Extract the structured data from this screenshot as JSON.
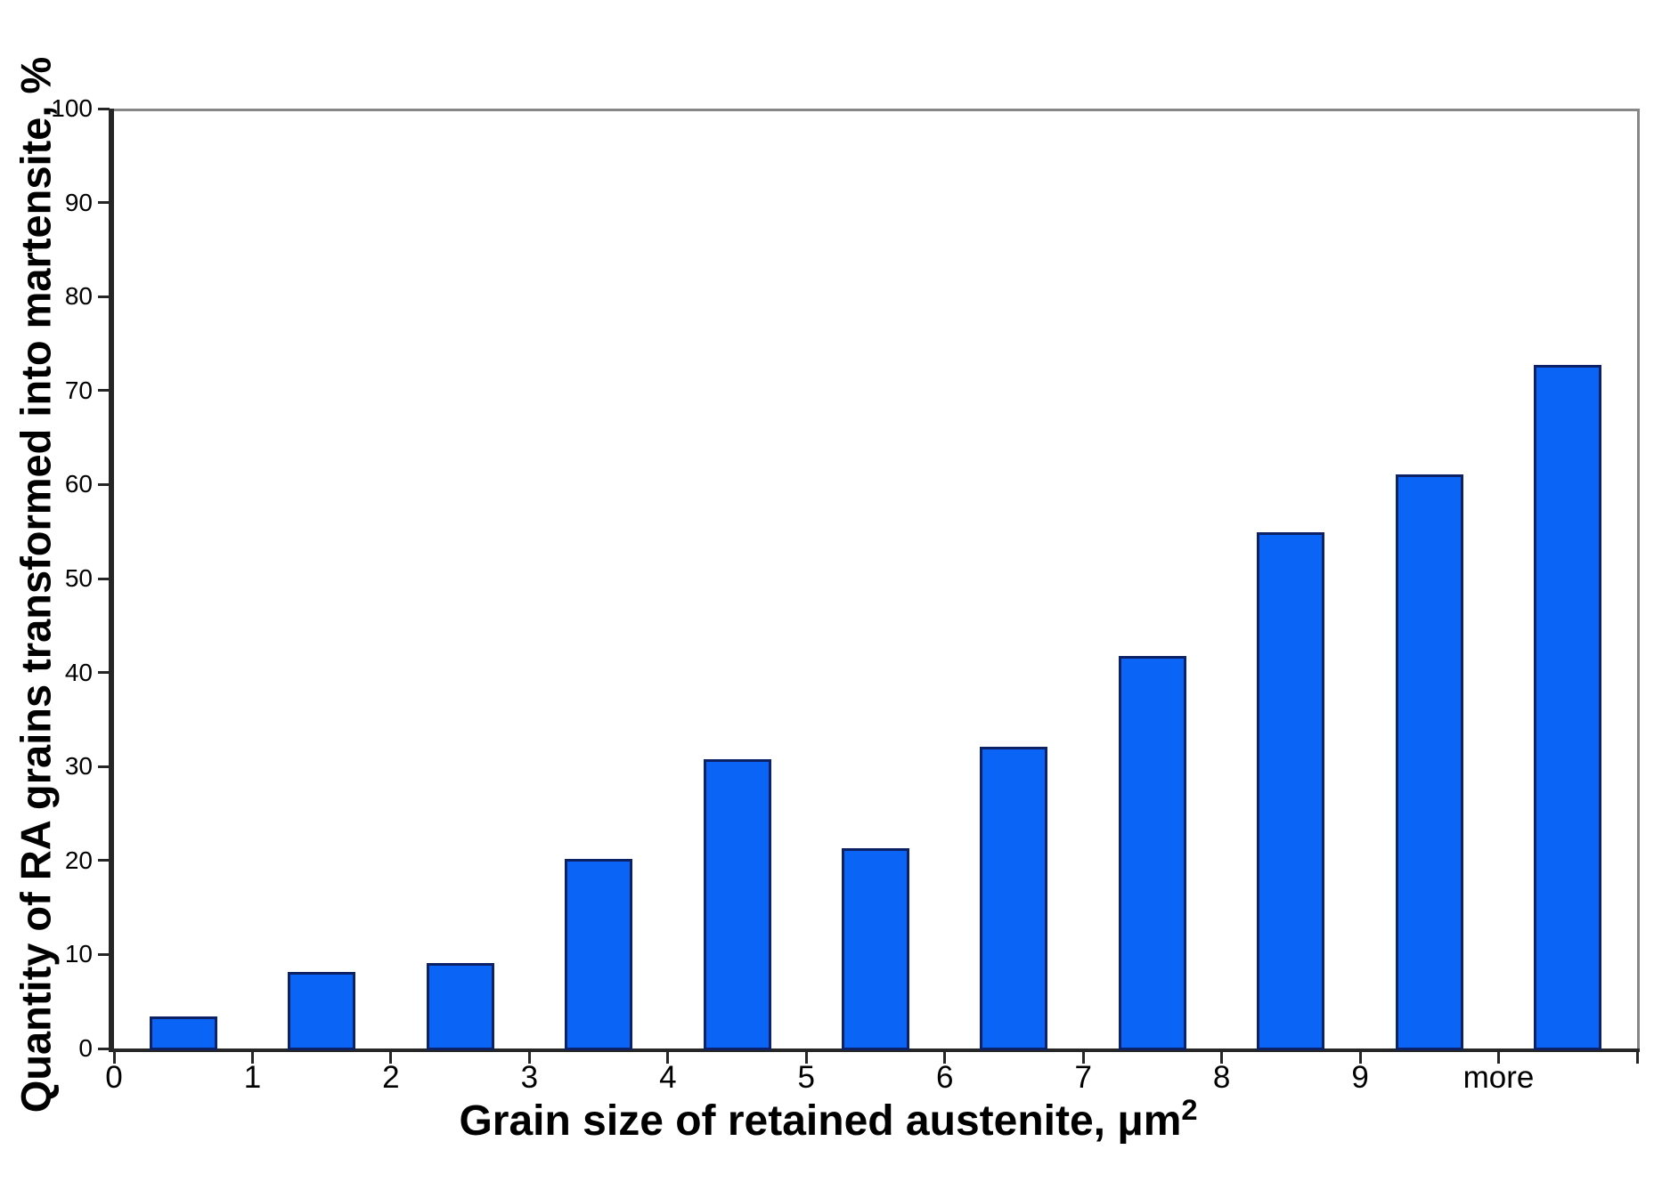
{
  "figure": {
    "background_color": "#ffffff",
    "text_color": "#000000"
  },
  "chart_data": {
    "type": "bar",
    "title": "",
    "ylabel": "Quantity of RA grains transformed into martensite, %",
    "xlabel_base": "Grain size of retained austenite, μm",
    "xlabel_sup": "2",
    "categories": [
      "0-1",
      "1-2",
      "2-3",
      "3-4",
      "4-5",
      "5-6",
      "6-7",
      "7-8",
      "8-9",
      "9-10",
      "more"
    ],
    "values": [
      3.4,
      8.1,
      9.1,
      20.2,
      30.8,
      21.3,
      32.1,
      41.8,
      54.9,
      61.1,
      72.7
    ],
    "ylim": [
      0,
      100
    ],
    "y_ticks": [
      0,
      10,
      20,
      30,
      40,
      50,
      60,
      70,
      80,
      90,
      100
    ],
    "x_domain_slots": 11,
    "x_tick_labels": [
      "0",
      "1",
      "2",
      "3",
      "4",
      "5",
      "6",
      "7",
      "8",
      "9",
      "more",
      ""
    ],
    "grid": false,
    "legend": false,
    "bar_fill_color": "#0a64f5",
    "bar_border_color": "#0d2166",
    "axis_dark_color": "#262626",
    "frame_gray_color": "#878787"
  }
}
